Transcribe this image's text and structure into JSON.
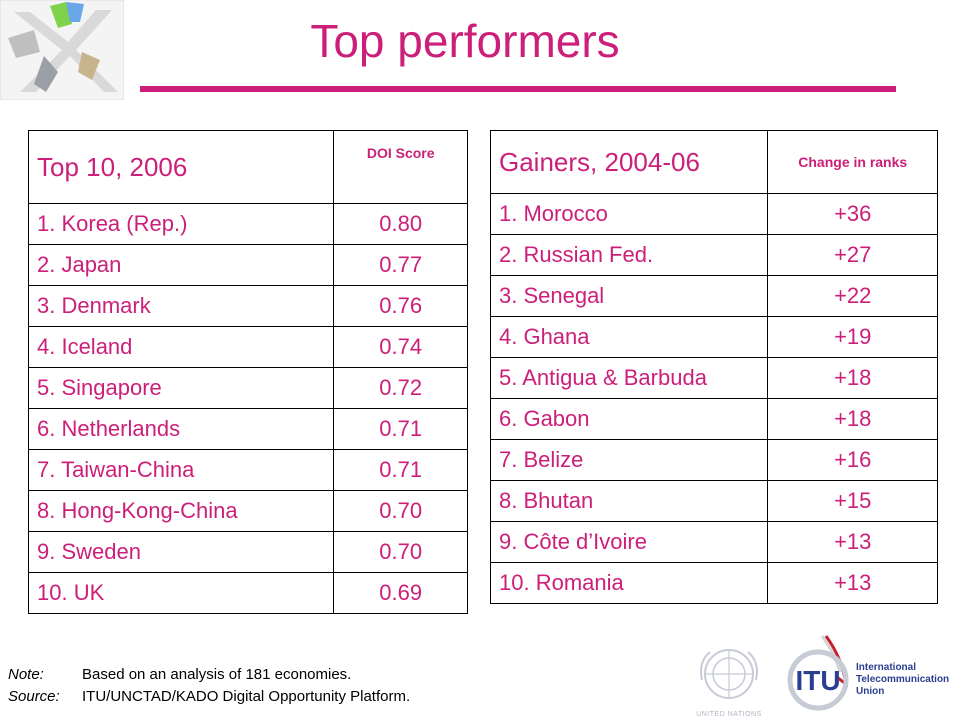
{
  "title": "Top performers",
  "table1": {
    "heading": "Top 10, 2006",
    "column": "DOI Score",
    "rows": [
      {
        "name": "1. Korea (Rep.)",
        "value": "0.80"
      },
      {
        "name": "2. Japan",
        "value": "0.77"
      },
      {
        "name": "3. Denmark",
        "value": "0.76"
      },
      {
        "name": "4. Iceland",
        "value": "0.74"
      },
      {
        "name": "5. Singapore",
        "value": "0.72"
      },
      {
        "name": "6. Netherlands",
        "value": "0.71"
      },
      {
        "name": "7. Taiwan-China",
        "value": "0.71"
      },
      {
        "name": "8. Hong-Kong-China",
        "value": "0.70"
      },
      {
        "name": "9. Sweden",
        "value": "0.70"
      },
      {
        "name": "10. UK",
        "value": "0.69"
      }
    ]
  },
  "table2": {
    "heading": "Gainers, 2004-06",
    "column": "Change in ranks",
    "rows": [
      {
        "name": "1. Morocco",
        "value": "+36"
      },
      {
        "name": "2. Russian Fed.",
        "value": "+27"
      },
      {
        "name": "3. Senegal",
        "value": "+22"
      },
      {
        "name": "4. Ghana",
        "value": "+19"
      },
      {
        "name": "5. Antigua & Barbuda",
        "value": "+18"
      },
      {
        "name": "6. Gabon",
        "value": "+18"
      },
      {
        "name": "7. Belize",
        "value": "+16"
      },
      {
        "name": "8. Bhutan",
        "value": "+15"
      },
      {
        "name": "9. Côte d’Ivoire",
        "value": "+13"
      },
      {
        "name": "10. Romania",
        "value": "+13"
      }
    ]
  },
  "footer": {
    "note_label": "Note:",
    "note_text": "Based on an analysis of 181 economies.",
    "source_label": "Source:",
    "source_text": "ITU/UNCTAD/KADO Digital Opportunity Platform."
  },
  "logos": {
    "un_text": "UNITED NATIONS",
    "itu_text": "ITU",
    "itu_full": "International Telecommunication Union"
  },
  "colors": {
    "accent": "#cc1f7a",
    "border": "#000000"
  }
}
